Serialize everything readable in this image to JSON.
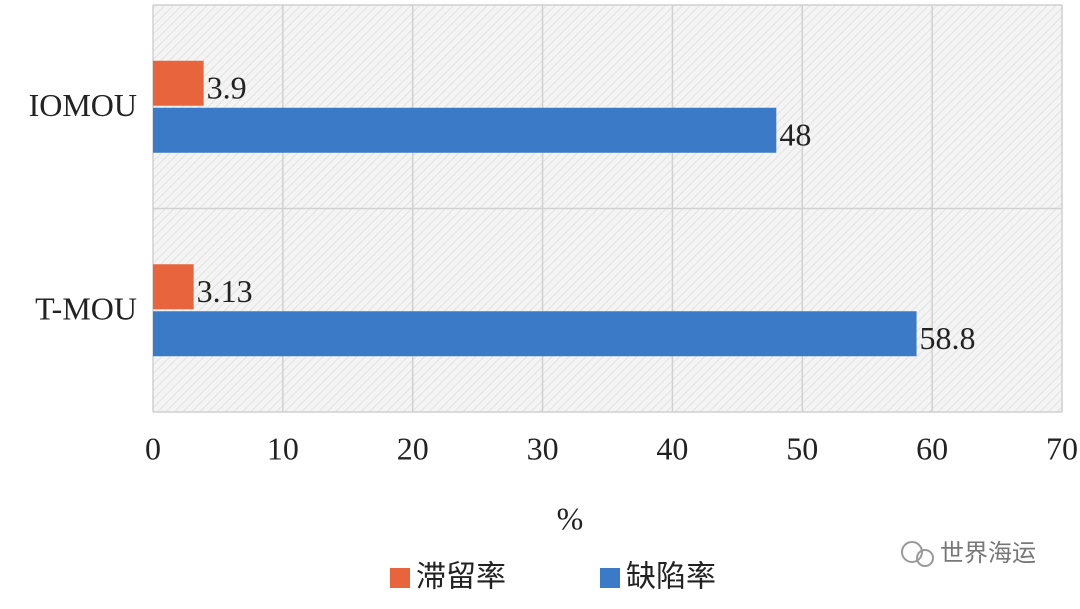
{
  "chart_data": {
    "type": "bar",
    "orientation": "horizontal",
    "categories": [
      "IOMOU",
      "T-MOU"
    ],
    "series": [
      {
        "name": "滞留率",
        "color": "#e8643c",
        "values": [
          3.9,
          3.13
        ]
      },
      {
        "name": "缺陷率",
        "color": "#3a7ac6",
        "values": [
          48,
          58.8
        ]
      }
    ],
    "xlabel": "%",
    "xlim": [
      0,
      70
    ],
    "xticks": [
      0,
      10,
      20,
      30,
      40,
      50,
      60,
      70
    ],
    "grid": true,
    "legend": "bottom"
  },
  "watermark": "世界海运"
}
